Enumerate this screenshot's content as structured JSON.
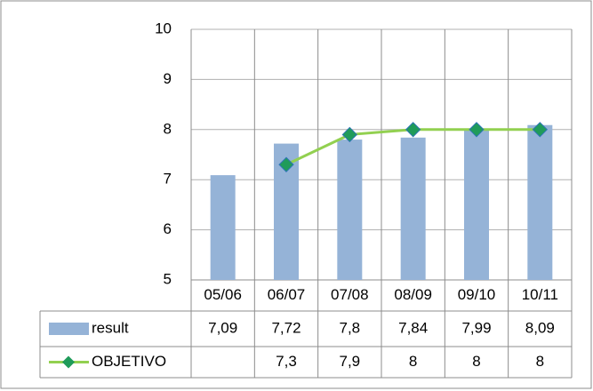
{
  "chart_data": {
    "type": "bar",
    "categories": [
      "05/06",
      "06/07",
      "07/08",
      "08/09",
      "09/10",
      "10/11"
    ],
    "series": [
      {
        "name": "result",
        "type": "bar",
        "color": "#95b3d7",
        "values": [
          7.09,
          7.72,
          7.8,
          7.84,
          7.99,
          8.09
        ],
        "value_labels": [
          "7,09",
          "7,72",
          "7,8",
          "7,84",
          "7,99",
          "8,09"
        ]
      },
      {
        "name": "OBJETIVO",
        "type": "line",
        "color": "#92d050",
        "marker_color": "#1f9b5a",
        "values": [
          null,
          7.3,
          7.9,
          8,
          8,
          8
        ],
        "value_labels": [
          null,
          "7,3",
          "7,9",
          "8",
          "8",
          "8"
        ]
      }
    ],
    "ylim": [
      5,
      10
    ],
    "yticks": [
      5,
      6,
      7,
      8,
      9,
      10
    ],
    "grid": true,
    "data_table": true
  }
}
